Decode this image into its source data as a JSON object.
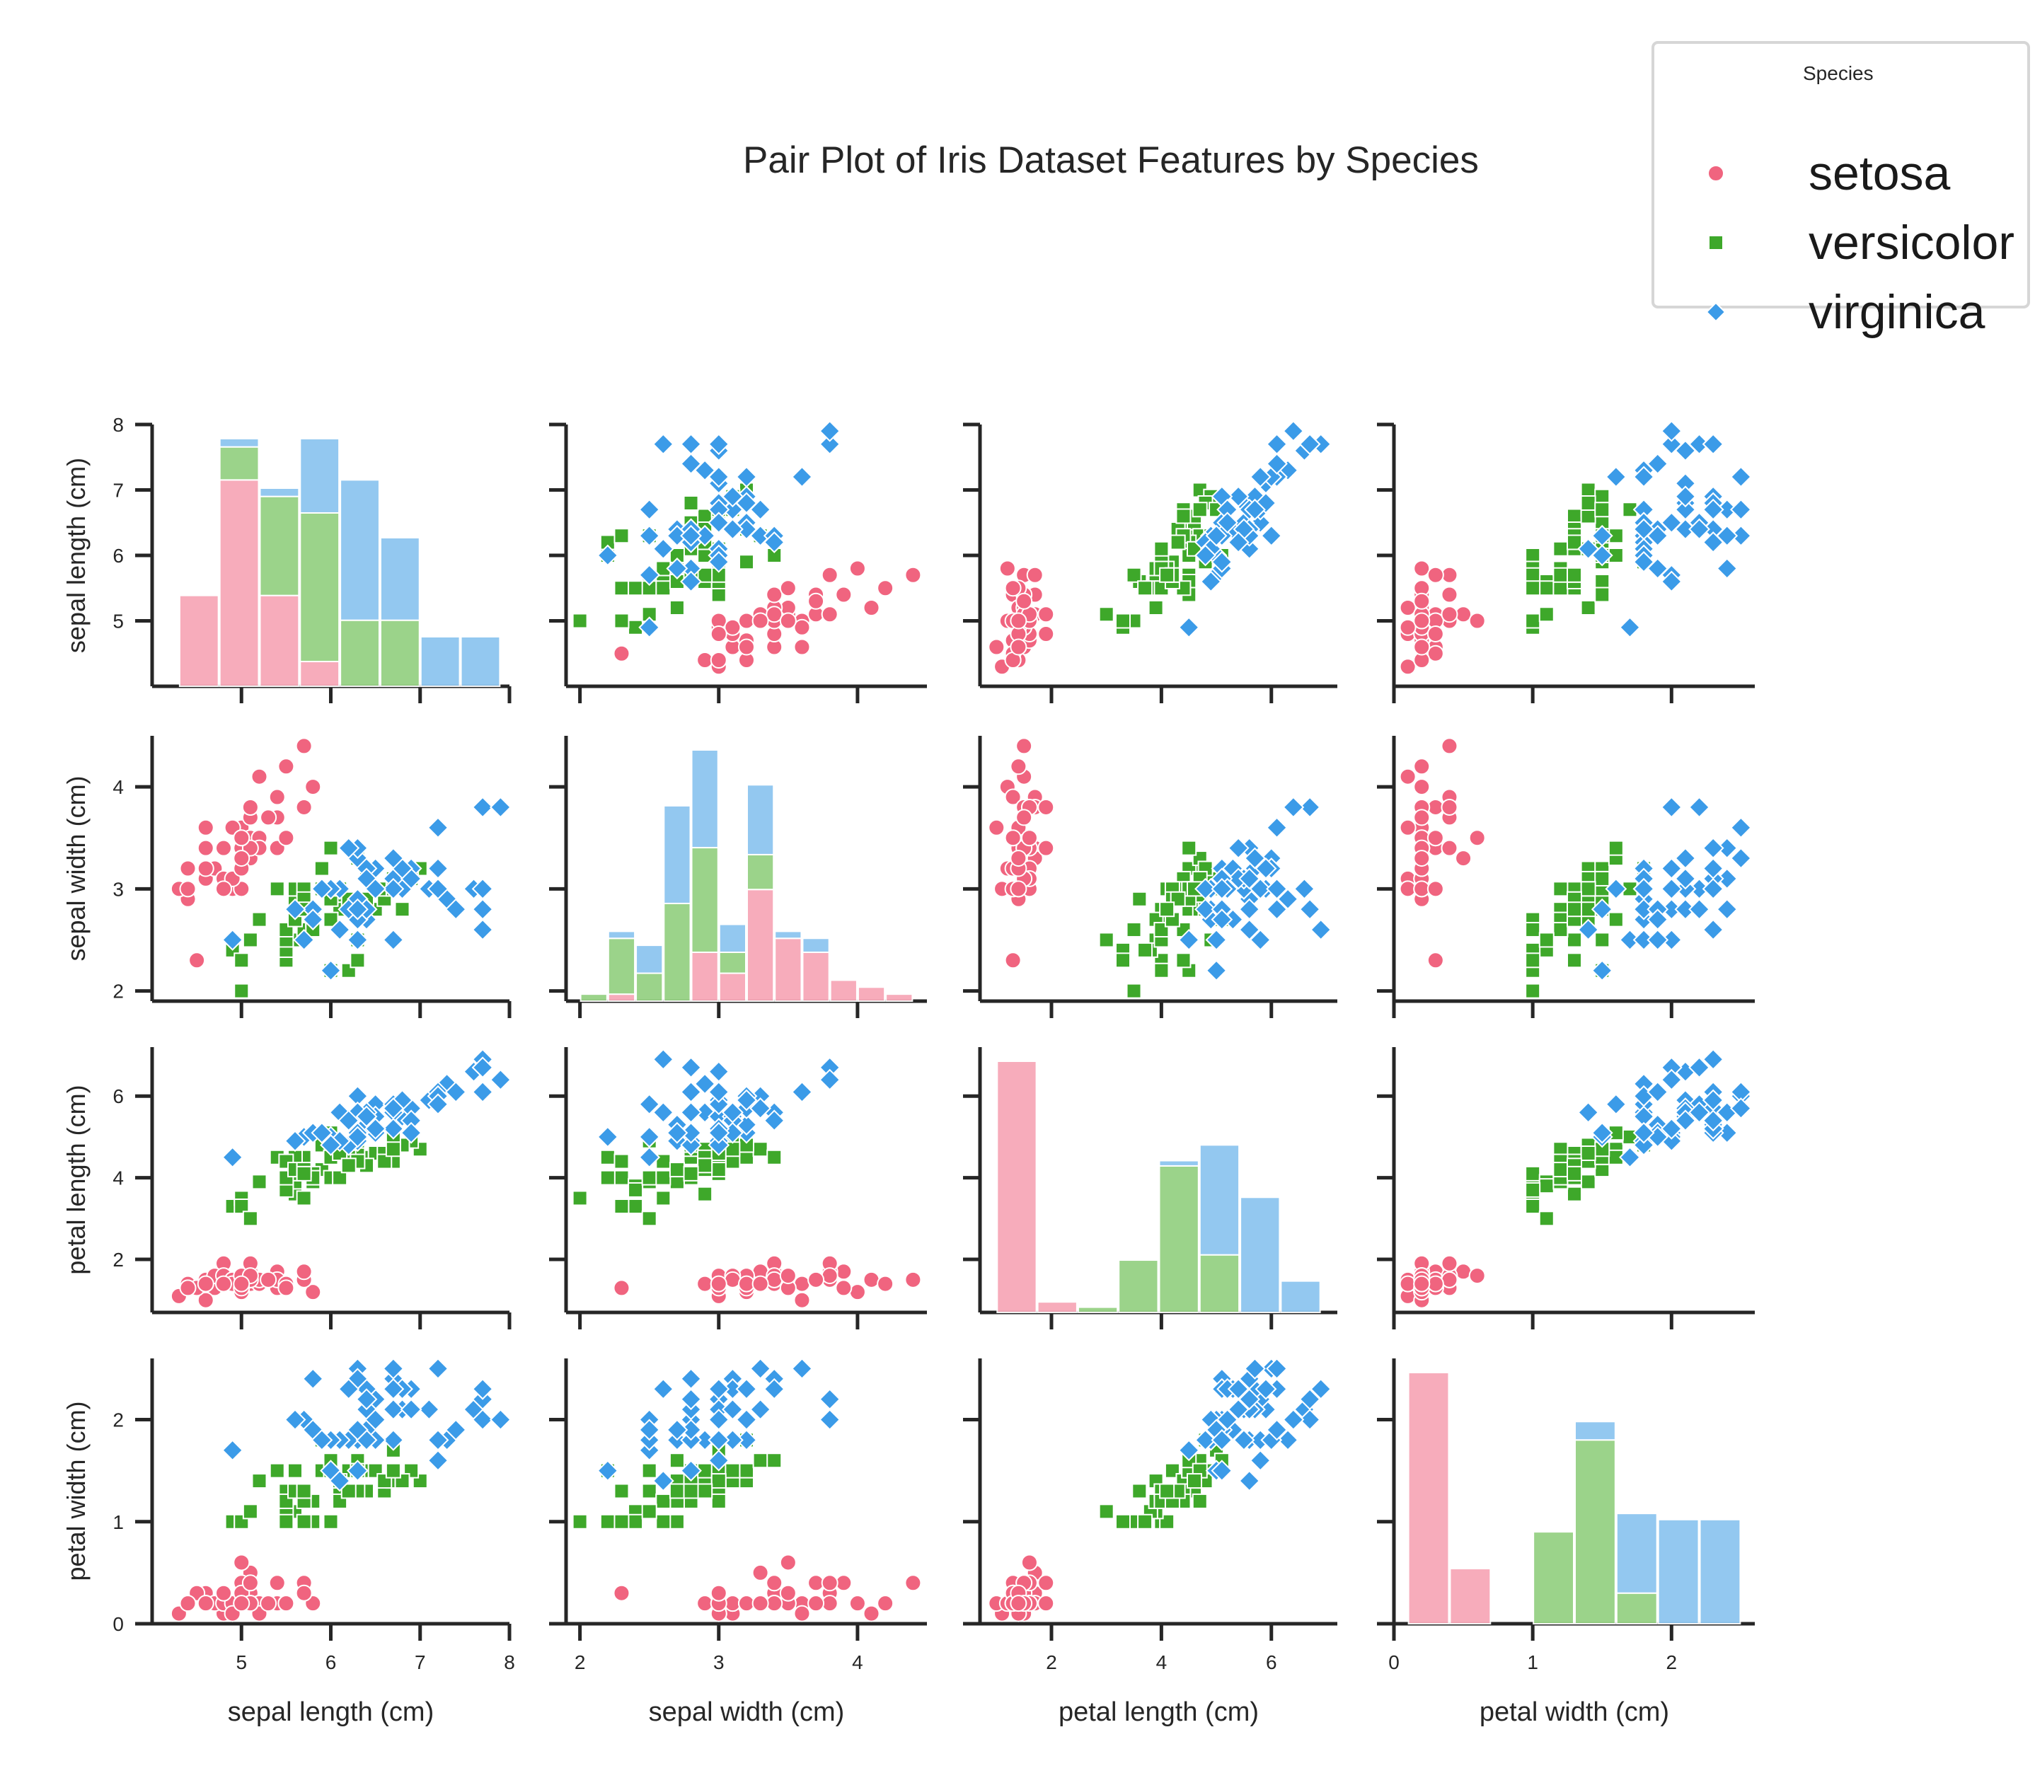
{
  "title": "Pair Plot of Iris Dataset Features by Species",
  "legend": {
    "title": "Species",
    "items": [
      {
        "label": "setosa",
        "color": "#f0647f",
        "marker": "circle"
      },
      {
        "label": "versicolor",
        "color": "#3ea82a",
        "marker": "square"
      },
      {
        "label": "virginica",
        "color": "#3b9be8",
        "marker": "diamond"
      }
    ]
  },
  "chart_data": {
    "type": "scatter",
    "variant": "pair-plot (scatter off-diagonal, histogram on diagonal)",
    "variables": [
      {
        "label": "sepal length (cm)",
        "range": [
          4.0,
          8.0
        ],
        "ticks": [
          5,
          6,
          7,
          8
        ]
      },
      {
        "label": "sepal width (cm)",
        "range": [
          1.9,
          4.5
        ],
        "ticks": [
          2,
          3,
          4
        ]
      },
      {
        "label": "petal length (cm)",
        "range": [
          0.7,
          7.2
        ],
        "ticks": [
          2,
          4,
          6
        ]
      },
      {
        "label": "petal width (cm)",
        "range": [
          0.0,
          2.6
        ],
        "ticks": [
          0,
          1,
          2
        ]
      }
    ],
    "series": [
      {
        "name": "setosa",
        "color": "#f0647f",
        "marker": "circle",
        "points": [
          [
            5.1,
            3.5,
            1.4,
            0.2
          ],
          [
            4.9,
            3.0,
            1.4,
            0.2
          ],
          [
            4.7,
            3.2,
            1.3,
            0.2
          ],
          [
            4.6,
            3.1,
            1.5,
            0.2
          ],
          [
            5.0,
            3.6,
            1.4,
            0.2
          ],
          [
            5.4,
            3.9,
            1.7,
            0.4
          ],
          [
            4.6,
            3.4,
            1.4,
            0.3
          ],
          [
            5.0,
            3.4,
            1.5,
            0.2
          ],
          [
            4.4,
            2.9,
            1.4,
            0.2
          ],
          [
            4.9,
            3.1,
            1.5,
            0.1
          ],
          [
            5.4,
            3.7,
            1.5,
            0.2
          ],
          [
            4.8,
            3.4,
            1.6,
            0.2
          ],
          [
            4.8,
            3.0,
            1.4,
            0.1
          ],
          [
            4.3,
            3.0,
            1.1,
            0.1
          ],
          [
            5.8,
            4.0,
            1.2,
            0.2
          ],
          [
            5.7,
            4.4,
            1.5,
            0.4
          ],
          [
            5.4,
            3.9,
            1.3,
            0.4
          ],
          [
            5.1,
            3.5,
            1.4,
            0.3
          ],
          [
            5.7,
            3.8,
            1.7,
            0.3
          ],
          [
            5.1,
            3.8,
            1.5,
            0.3
          ],
          [
            5.4,
            3.4,
            1.7,
            0.2
          ],
          [
            5.1,
            3.7,
            1.5,
            0.4
          ],
          [
            4.6,
            3.6,
            1.0,
            0.2
          ],
          [
            5.1,
            3.3,
            1.7,
            0.5
          ],
          [
            4.8,
            3.4,
            1.9,
            0.2
          ],
          [
            5.0,
            3.0,
            1.6,
            0.2
          ],
          [
            5.0,
            3.4,
            1.6,
            0.4
          ],
          [
            5.2,
            3.5,
            1.5,
            0.2
          ],
          [
            5.2,
            3.4,
            1.4,
            0.2
          ],
          [
            4.7,
            3.2,
            1.6,
            0.2
          ],
          [
            4.8,
            3.1,
            1.6,
            0.2
          ],
          [
            5.4,
            3.4,
            1.5,
            0.4
          ],
          [
            5.2,
            4.1,
            1.5,
            0.1
          ],
          [
            5.5,
            4.2,
            1.4,
            0.2
          ],
          [
            4.9,
            3.1,
            1.5,
            0.2
          ],
          [
            5.0,
            3.2,
            1.2,
            0.2
          ],
          [
            5.5,
            3.5,
            1.3,
            0.2
          ],
          [
            4.9,
            3.6,
            1.4,
            0.1
          ],
          [
            4.4,
            3.0,
            1.3,
            0.2
          ],
          [
            5.1,
            3.4,
            1.5,
            0.2
          ],
          [
            5.0,
            3.5,
            1.3,
            0.3
          ],
          [
            4.5,
            2.3,
            1.3,
            0.3
          ],
          [
            4.4,
            3.2,
            1.3,
            0.2
          ],
          [
            5.0,
            3.5,
            1.6,
            0.6
          ],
          [
            5.1,
            3.8,
            1.9,
            0.4
          ],
          [
            4.8,
            3.0,
            1.4,
            0.3
          ],
          [
            5.1,
            3.8,
            1.6,
            0.2
          ],
          [
            4.6,
            3.2,
            1.4,
            0.2
          ],
          [
            5.3,
            3.7,
            1.5,
            0.2
          ],
          [
            5.0,
            3.3,
            1.4,
            0.2
          ]
        ]
      },
      {
        "name": "versicolor",
        "color": "#3ea82a",
        "marker": "square",
        "points": [
          [
            7.0,
            3.2,
            4.7,
            1.4
          ],
          [
            6.4,
            3.2,
            4.5,
            1.5
          ],
          [
            6.9,
            3.1,
            4.9,
            1.5
          ],
          [
            5.5,
            2.3,
            4.0,
            1.3
          ],
          [
            6.5,
            2.8,
            4.6,
            1.5
          ],
          [
            5.7,
            2.8,
            4.5,
            1.3
          ],
          [
            6.3,
            3.3,
            4.7,
            1.6
          ],
          [
            4.9,
            2.4,
            3.3,
            1.0
          ],
          [
            6.6,
            2.9,
            4.6,
            1.3
          ],
          [
            5.2,
            2.7,
            3.9,
            1.4
          ],
          [
            5.0,
            2.0,
            3.5,
            1.0
          ],
          [
            5.9,
            3.0,
            4.2,
            1.5
          ],
          [
            6.0,
            2.2,
            4.0,
            1.0
          ],
          [
            6.1,
            2.9,
            4.7,
            1.4
          ],
          [
            5.6,
            2.9,
            3.6,
            1.3
          ],
          [
            6.7,
            3.1,
            4.4,
            1.4
          ],
          [
            5.6,
            3.0,
            4.5,
            1.5
          ],
          [
            5.8,
            2.7,
            4.1,
            1.0
          ],
          [
            6.2,
            2.2,
            4.5,
            1.5
          ],
          [
            5.6,
            2.5,
            3.9,
            1.1
          ],
          [
            5.9,
            3.2,
            4.8,
            1.8
          ],
          [
            6.1,
            2.8,
            4.0,
            1.3
          ],
          [
            6.3,
            2.5,
            4.9,
            1.5
          ],
          [
            6.1,
            2.8,
            4.7,
            1.2
          ],
          [
            6.4,
            2.9,
            4.3,
            1.3
          ],
          [
            6.6,
            3.0,
            4.4,
            1.4
          ],
          [
            6.8,
            2.8,
            4.8,
            1.4
          ],
          [
            6.7,
            3.0,
            5.0,
            1.7
          ],
          [
            6.0,
            2.9,
            4.5,
            1.5
          ],
          [
            5.7,
            2.6,
            3.5,
            1.0
          ],
          [
            5.5,
            2.4,
            3.8,
            1.1
          ],
          [
            5.5,
            2.4,
            3.7,
            1.0
          ],
          [
            5.8,
            2.7,
            3.9,
            1.2
          ],
          [
            6.0,
            2.7,
            5.1,
            1.6
          ],
          [
            5.4,
            3.0,
            4.5,
            1.5
          ],
          [
            6.0,
            3.4,
            4.5,
            1.6
          ],
          [
            6.7,
            3.1,
            4.7,
            1.5
          ],
          [
            6.3,
            2.3,
            4.4,
            1.3
          ],
          [
            5.6,
            3.0,
            4.1,
            1.3
          ],
          [
            5.5,
            2.5,
            4.0,
            1.3
          ],
          [
            5.5,
            2.6,
            4.4,
            1.2
          ],
          [
            6.1,
            3.0,
            4.6,
            1.4
          ],
          [
            5.8,
            2.6,
            4.0,
            1.2
          ],
          [
            5.0,
            2.3,
            3.3,
            1.0
          ],
          [
            5.6,
            2.7,
            4.2,
            1.3
          ],
          [
            5.7,
            3.0,
            4.2,
            1.2
          ],
          [
            5.7,
            2.9,
            4.2,
            1.3
          ],
          [
            6.2,
            2.9,
            4.3,
            1.3
          ],
          [
            5.1,
            2.5,
            3.0,
            1.1
          ],
          [
            5.7,
            2.8,
            4.1,
            1.3
          ]
        ]
      },
      {
        "name": "virginica",
        "color": "#3b9be8",
        "marker": "diamond",
        "points": [
          [
            6.3,
            3.3,
            6.0,
            2.5
          ],
          [
            5.8,
            2.7,
            5.1,
            1.9
          ],
          [
            7.1,
            3.0,
            5.9,
            2.1
          ],
          [
            6.3,
            2.9,
            5.6,
            1.8
          ],
          [
            6.5,
            3.0,
            5.8,
            2.2
          ],
          [
            7.6,
            3.0,
            6.6,
            2.1
          ],
          [
            4.9,
            2.5,
            4.5,
            1.7
          ],
          [
            7.3,
            2.9,
            6.3,
            1.8
          ],
          [
            6.7,
            2.5,
            5.8,
            1.8
          ],
          [
            7.2,
            3.6,
            6.1,
            2.5
          ],
          [
            6.5,
            3.2,
            5.1,
            2.0
          ],
          [
            6.4,
            2.7,
            5.3,
            1.9
          ],
          [
            6.8,
            3.0,
            5.5,
            2.1
          ],
          [
            5.7,
            2.5,
            5.0,
            2.0
          ],
          [
            5.8,
            2.8,
            5.1,
            2.4
          ],
          [
            6.4,
            3.2,
            5.3,
            2.3
          ],
          [
            6.5,
            3.0,
            5.5,
            1.8
          ],
          [
            7.7,
            3.8,
            6.7,
            2.2
          ],
          [
            7.7,
            2.6,
            6.9,
            2.3
          ],
          [
            6.0,
            2.2,
            5.0,
            1.5
          ],
          [
            6.9,
            3.2,
            5.7,
            2.3
          ],
          [
            5.6,
            2.8,
            4.9,
            2.0
          ],
          [
            7.7,
            2.8,
            6.7,
            2.0
          ],
          [
            6.3,
            2.7,
            4.9,
            1.8
          ],
          [
            6.7,
            3.3,
            5.7,
            2.1
          ],
          [
            7.2,
            3.2,
            6.0,
            1.8
          ],
          [
            6.2,
            2.8,
            4.8,
            1.8
          ],
          [
            6.1,
            3.0,
            4.9,
            1.8
          ],
          [
            6.4,
            2.8,
            5.6,
            2.1
          ],
          [
            7.2,
            3.0,
            5.8,
            1.6
          ],
          [
            7.4,
            2.8,
            6.1,
            1.9
          ],
          [
            7.9,
            3.8,
            6.4,
            2.0
          ],
          [
            6.4,
            2.8,
            5.6,
            2.2
          ],
          [
            6.3,
            2.8,
            5.1,
            1.5
          ],
          [
            6.1,
            2.6,
            5.6,
            1.4
          ],
          [
            7.7,
            3.0,
            6.1,
            2.3
          ],
          [
            6.3,
            3.4,
            5.6,
            2.4
          ],
          [
            6.4,
            3.1,
            5.5,
            1.8
          ],
          [
            6.0,
            3.0,
            4.8,
            1.8
          ],
          [
            6.9,
            3.1,
            5.4,
            2.1
          ],
          [
            6.7,
            3.1,
            5.6,
            2.4
          ],
          [
            6.9,
            3.1,
            5.1,
            2.3
          ],
          [
            5.8,
            2.7,
            5.1,
            1.9
          ],
          [
            6.8,
            3.2,
            5.9,
            2.3
          ],
          [
            6.7,
            3.3,
            5.7,
            2.5
          ],
          [
            6.7,
            3.0,
            5.2,
            2.3
          ],
          [
            6.3,
            2.5,
            5.0,
            1.9
          ],
          [
            6.5,
            3.0,
            5.2,
            2.0
          ],
          [
            6.2,
            3.4,
            5.4,
            2.3
          ],
          [
            5.9,
            3.0,
            5.1,
            1.8
          ]
        ]
      }
    ],
    "diagonal": "stacked histograms per species",
    "grid": false,
    "legend_position": "top-right"
  }
}
